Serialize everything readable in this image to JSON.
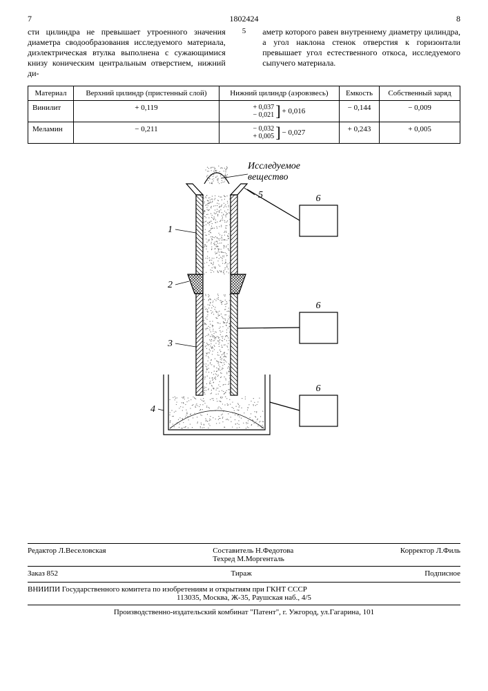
{
  "header": {
    "left_page": "7",
    "doc_number": "1802424",
    "right_page": "8"
  },
  "text": {
    "left_col": "сти цилиндра не превышает утроенного значения диаметра сводообразования исследуемого материала, диэлектрическая втулка выполнена с сужающимися книзу коническим центральным отверстием, нижний ди-",
    "line_no": "5",
    "right_col": "аметр которого равен внутреннему диаметру цилиндра, а угол наклона стенок отверстия к горизонтали превышает угол естественного откоса, исследуемого сыпучего материала."
  },
  "table": {
    "headers": [
      "Материал",
      "Верхний цилиндр (пристенный слой)",
      "Нижний цилиндр (аэровзвесь)",
      "Емкость",
      "Собственный заряд"
    ],
    "rows": [
      {
        "material": "Винилит",
        "upper": "+ 0,119",
        "lower_pair": [
          "+ 0,037",
          "− 0,021"
        ],
        "lower_sum": "+ 0,016",
        "capacity": "− 0,144",
        "charge": "− 0,009"
      },
      {
        "material": "Меламин",
        "upper": "− 0,211",
        "lower_pair": [
          "− 0,032",
          "+ 0,005"
        ],
        "lower_sum": "− 0,027",
        "capacity": "+ 0,243",
        "charge": "+ 0,005"
      }
    ]
  },
  "figure": {
    "annotation": "Исследуемое вещество",
    "labels": {
      "n1": "1",
      "n2": "2",
      "n3": "3",
      "n4": "4",
      "n5": "5",
      "n6": "6"
    },
    "colors": {
      "stroke": "#000000",
      "hatch": "#000000",
      "dot": "#666666"
    },
    "line_width": 1.2
  },
  "credits": {
    "editor": "Редактор  Л.Веселовская",
    "compiler": "Составитель Н.Федотова",
    "tech": "Техред М.Моргенталь",
    "corrector": "Корректор  Л.Филь",
    "order": "Заказ 852",
    "tirazh": "Тираж",
    "sub": "Подписное",
    "org": "ВНИИПИ Государственного комитета по изобретениям и открытиям при ГКНТ СССР",
    "addr": "113035, Москва, Ж-35, Раушская наб., 4/5",
    "printer": "Производственно-издательский комбинат \"Патент\", г. Ужгород, ул.Гагарина, 101"
  }
}
